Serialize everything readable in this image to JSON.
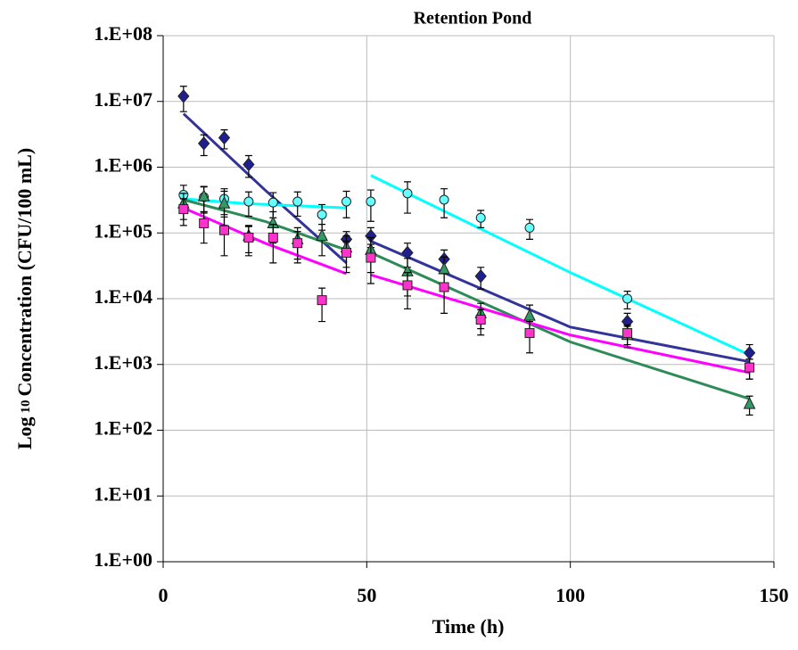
{
  "chart_data": {
    "type": "scatter",
    "title": "Retention Pond",
    "x_label": "Time (h)",
    "y_label": {
      "base": "Log",
      "subscript": "10",
      "rest": "Concentration (CFU/100 mL)"
    },
    "log_y": true,
    "grid": true,
    "xlim": [
      0,
      150
    ],
    "xticks": [
      0,
      50,
      100,
      150
    ],
    "ylim": [
      1,
      100000000
    ],
    "yticks": [
      {
        "value": 1,
        "label": "1.E+00"
      },
      {
        "value": 10,
        "label": "1.E+01"
      },
      {
        "value": 100,
        "label": "1.E+02"
      },
      {
        "value": 1000,
        "label": "1.E+03"
      },
      {
        "value": 10000,
        "label": "1.E+04"
      },
      {
        "value": 100000,
        "label": "1.E+05"
      },
      {
        "value": 1000000,
        "label": "1.E+06"
      },
      {
        "value": 10000000,
        "label": "1.E+07"
      },
      {
        "value": 100000000,
        "label": "1.E+08"
      }
    ],
    "series": [
      {
        "kind": "line",
        "color": "#333399",
        "x": [
          5,
          25,
          45,
          48,
          51,
          100,
          144
        ],
        "values": [
          6500000,
          450000,
          35000,
          null,
          75000,
          3700,
          1100
        ]
      },
      {
        "kind": "line",
        "color": "#00FFFF",
        "x": [
          5,
          20,
          45,
          48,
          51,
          100,
          144
        ],
        "values": [
          330000,
          280000,
          240000,
          null,
          750000,
          25000,
          1400
        ]
      },
      {
        "kind": "line",
        "color": "#2E8B57",
        "x": [
          5,
          25,
          45,
          48,
          51,
          100,
          144
        ],
        "values": [
          320000,
          150000,
          55000,
          null,
          50000,
          2200,
          300
        ]
      },
      {
        "kind": "line",
        "color": "#FF00FF",
        "x": [
          5,
          25,
          45,
          48,
          51,
          100,
          144
        ],
        "values": [
          240000,
          70000,
          24000,
          null,
          23000,
          2800,
          750
        ]
      },
      {
        "kind": "points",
        "marker": "diamond",
        "color": "#1F1F8F",
        "x": [
          5,
          10,
          15,
          21,
          45,
          51,
          60,
          69,
          78,
          114,
          144
        ],
        "values": [
          12000000,
          2300000,
          2800000,
          1100000,
          80000,
          90000,
          50000,
          40000,
          22000,
          4500,
          1500
        ],
        "errors": [
          5000000,
          800000,
          900000,
          400000,
          25000,
          30000,
          20000,
          15000,
          8000,
          1500,
          500
        ]
      },
      {
        "kind": "points",
        "marker": "circle",
        "color": "#66FFFF",
        "x": [
          5,
          10,
          15,
          21,
          27,
          33,
          39,
          45,
          51,
          60,
          69,
          78,
          90,
          114,
          144
        ],
        "values": [
          380000,
          350000,
          330000,
          300000,
          290000,
          300000,
          190000,
          300000,
          300000,
          400000,
          320000,
          170000,
          120000,
          10000,
          900
        ],
        "errors": [
          150000,
          150000,
          140000,
          120000,
          120000,
          120000,
          80000,
          130000,
          150000,
          200000,
          150000,
          50000,
          40000,
          3000,
          300
        ]
      },
      {
        "kind": "points",
        "marker": "triangle",
        "color": "#339966",
        "x": [
          5,
          10,
          15,
          21,
          27,
          33,
          39,
          45,
          51,
          60,
          69,
          78,
          90,
          114,
          144
        ],
        "values": [
          280000,
          360000,
          280000,
          90000,
          140000,
          80000,
          90000,
          60000,
          55000,
          26000,
          28000,
          6000,
          5500,
          2800,
          250
        ],
        "errors": [
          120000,
          150000,
          150000,
          40000,
          70000,
          40000,
          45000,
          30000,
          30000,
          15000,
          15000,
          2500,
          2500,
          1000,
          80
        ]
      },
      {
        "kind": "points",
        "marker": "square",
        "color": "#FF33CC",
        "x": [
          5,
          10,
          15,
          21,
          27,
          33,
          39,
          45,
          51,
          60,
          69,
          78,
          90,
          114,
          144
        ],
        "values": [
          230000,
          140000,
          110000,
          85000,
          85000,
          70000,
          9500,
          50000,
          42000,
          16000,
          15000,
          4800,
          3000,
          3000,
          900
        ],
        "errors": [
          100000,
          70000,
          65000,
          40000,
          50000,
          35000,
          5000,
          25000,
          25000,
          9000,
          9000,
          2000,
          1500,
          1000,
          300
        ]
      }
    ]
  }
}
